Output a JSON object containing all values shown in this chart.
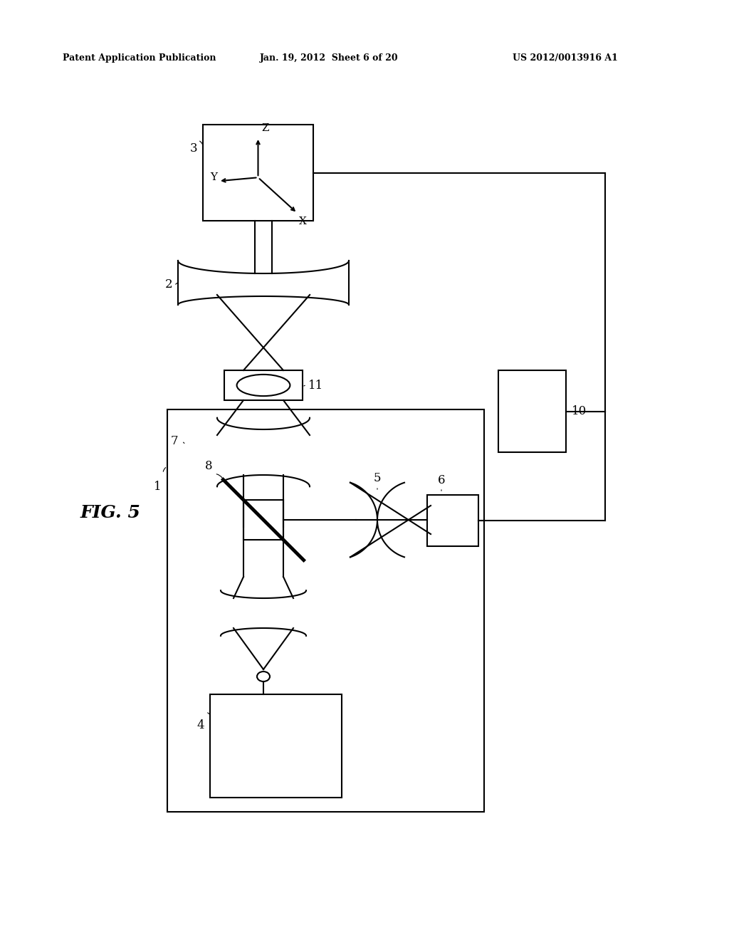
{
  "bg_color": "#ffffff",
  "line_color": "#000000",
  "header_text": "Patent Application Publication",
  "header_date": "Jan. 19, 2012  Sheet 6 of 20",
  "header_patent": "US 2012/0013916 A1",
  "fig_label": "FIG. 5",
  "figsize": [
    10.24,
    13.2
  ],
  "dpi": 100
}
